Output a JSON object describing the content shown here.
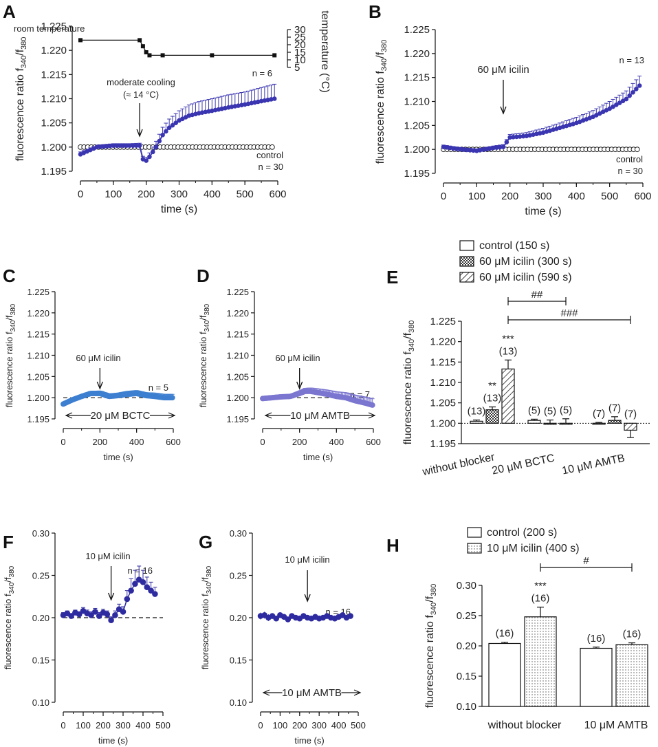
{
  "colors": {
    "dark_blue": "#3a35b0",
    "dark_blue_fill": "#3732a8",
    "mid_blue": "#3d7fd0",
    "lilac": "#7b76d0",
    "navy": "#2e2aa0",
    "black": "#111111",
    "open": "#ffffff"
  },
  "chart_data": [
    {
      "panel": "A",
      "type": "line",
      "xlabel": "time (s)",
      "ylabel_main": "fluorescence ratio f",
      "ylabel_sub1": "340",
      "ylabel_sep": "/f",
      "ylabel_sub2": "380",
      "xlim": [
        0,
        600
      ],
      "ylim": [
        1.195,
        1.225
      ],
      "xticks": [
        0,
        100,
        200,
        300,
        400,
        500,
        600
      ],
      "yticks": [
        1.195,
        1.2,
        1.205,
        1.21,
        1.215,
        1.22,
        1.225
      ],
      "ytick_labels": [
        "1.195",
        "1.200",
        "1.205",
        "1.210",
        "1.215",
        "1.220",
        "1.225"
      ],
      "right_axis": {
        "label": "temperature (°C)",
        "ylim": [
          5,
          30
        ],
        "ticks": [
          "5",
          "10",
          "15",
          "20",
          "25",
          "30"
        ],
        "tick_values": [
          5,
          10,
          15,
          20,
          25,
          30
        ],
        "temperature_series": {
          "x": [
            0,
            180,
            190,
            200,
            210,
            250,
            400,
            590
          ],
          "y": [
            23,
            23,
            19,
            15,
            13,
            13,
            13,
            13
          ]
        }
      },
      "annotations": {
        "room": "room temperature",
        "cool1": "moderate cooling",
        "cool2": "(≈ 14 °C)",
        "n_stim": "n = 6",
        "ctrl": "control",
        "n_ctrl": "n = 30"
      },
      "series": [
        {
          "name": "moderate cooling",
          "x": [
            0,
            50,
            100,
            150,
            180,
            190,
            200,
            210,
            230,
            250,
            270,
            300,
            330,
            360,
            400,
            450,
            500,
            550,
            590
          ],
          "y": [
            1.1985,
            1.2,
            1.2003,
            1.2003,
            1.2003,
            1.1975,
            1.1972,
            1.198,
            1.2,
            1.2025,
            1.204,
            1.2055,
            1.2065,
            1.207,
            1.2075,
            1.2082,
            1.2088,
            1.2095,
            1.21
          ],
          "err": [
            0.0005,
            0.0004,
            0.0004,
            0.0004,
            0.0005,
            0.0006,
            0.0007,
            0.0008,
            0.0012,
            0.0016,
            0.0018,
            0.002,
            0.0022,
            0.0024,
            0.0025,
            0.0026,
            0.0026,
            0.0028,
            0.003
          ]
        },
        {
          "name": "control",
          "x": [
            0,
            600
          ],
          "y": [
            1.2,
            1.2
          ]
        }
      ]
    },
    {
      "panel": "B",
      "type": "line",
      "xlabel": "time (s)",
      "ylabel_main": "fluorescence ratio f",
      "ylabel_sub1": "340",
      "ylabel_sep": "/f",
      "ylabel_sub2": "380",
      "xlim": [
        0,
        600
      ],
      "ylim": [
        1.195,
        1.225
      ],
      "xticks": [
        0,
        100,
        200,
        300,
        400,
        500,
        600
      ],
      "yticks": [
        1.195,
        1.2,
        1.205,
        1.21,
        1.215,
        1.22,
        1.225
      ],
      "ytick_labels": [
        "1.195",
        "1.200",
        "1.205",
        "1.210",
        "1.215",
        "1.220",
        "1.225"
      ],
      "annotations": {
        "stim": "60 μM icilin",
        "n_stim": "n = 13",
        "ctrl": "control",
        "n_ctrl": "n = 30"
      },
      "series": [
        {
          "name": "60 μM icilin",
          "x": [
            0,
            50,
            100,
            150,
            180,
            200,
            250,
            300,
            350,
            400,
            450,
            500,
            550,
            590
          ],
          "y": [
            1.2005,
            1.2,
            1.1997,
            1.2003,
            1.2005,
            1.2025,
            1.2028,
            1.2035,
            1.2045,
            1.2055,
            1.2068,
            1.2085,
            1.2105,
            1.2133
          ],
          "err": [
            0.0004,
            0.0004,
            0.0004,
            0.0004,
            0.0005,
            0.0006,
            0.0007,
            0.0009,
            0.001,
            0.0012,
            0.0013,
            0.0015,
            0.0017,
            0.002
          ]
        },
        {
          "name": "control",
          "x": [
            0,
            600
          ],
          "y": [
            1.2,
            1.2
          ]
        }
      ]
    },
    {
      "panel": "C",
      "type": "line",
      "xlabel": "time (s)",
      "ylabel_main": "fluorescence ratio f",
      "ylabel_sub1": "340",
      "ylabel_sep": "/f",
      "ylabel_sub2": "380",
      "xlim": [
        0,
        600
      ],
      "ylim": [
        1.195,
        1.225
      ],
      "xticks": [
        0,
        200,
        400,
        600
      ],
      "yticks": [
        1.195,
        1.2,
        1.205,
        1.21,
        1.215,
        1.22,
        1.225
      ],
      "ytick_labels": [
        "1.195",
        "1.200",
        "1.205",
        "1.210",
        "1.215",
        "1.220",
        "1.225"
      ],
      "annotations": {
        "stim": "60 μM icilin",
        "n_stim": "n = 5",
        "blocker": "20 μM BCTC"
      },
      "series": [
        {
          "name": "60 μM icilin + 20 μM BCTC",
          "x": [
            0,
            50,
            100,
            150,
            200,
            250,
            300,
            350,
            400,
            450,
            500,
            550,
            600
          ],
          "y": [
            1.1985,
            1.1995,
            1.2003,
            1.201,
            1.201,
            1.2003,
            1.2005,
            1.2008,
            1.201,
            1.2005,
            1.2003,
            1.2,
            1.2
          ],
          "err": [
            0.0004,
            0.0004,
            0.0004,
            0.0005,
            0.0006,
            0.0006,
            0.0006,
            0.0007,
            0.0007,
            0.0007,
            0.0008,
            0.0008,
            0.0008
          ]
        }
      ]
    },
    {
      "panel": "D",
      "type": "line",
      "xlabel": "time (s)",
      "ylabel_main": "fluorescence ratio f",
      "ylabel_sub1": "340",
      "ylabel_sep": "/f",
      "ylabel_sub2": "380",
      "xlim": [
        0,
        600
      ],
      "ylim": [
        1.195,
        1.225
      ],
      "xticks": [
        0,
        200,
        400,
        600
      ],
      "yticks": [
        1.195,
        1.2,
        1.205,
        1.21,
        1.215,
        1.22,
        1.225
      ],
      "ytick_labels": [
        "1.195",
        "1.200",
        "1.205",
        "1.210",
        "1.215",
        "1.220",
        "1.225"
      ],
      "annotations": {
        "stim": "60 μM icilin",
        "n_stim": "n = 7",
        "blocker": "10 μM AMTB"
      },
      "series": [
        {
          "name": "60 μM icilin + 10 μM AMTB",
          "x": [
            0,
            50,
            100,
            150,
            200,
            230,
            260,
            300,
            350,
            400,
            450,
            500,
            550,
            600
          ],
          "y": [
            1.1998,
            1.2,
            1.2002,
            1.2003,
            1.201,
            1.2015,
            1.2015,
            1.2012,
            1.2008,
            1.2003,
            1.2,
            1.1993,
            1.1988,
            1.1982
          ],
          "err": [
            0.0004,
            0.0004,
            0.0004,
            0.0004,
            0.0006,
            0.0007,
            0.0008,
            0.0009,
            0.001,
            0.0011,
            0.0012,
            0.0013,
            0.0014,
            0.0015
          ]
        }
      ]
    },
    {
      "panel": "E",
      "type": "bar",
      "ylabel_main": "fluorescence ratio f",
      "ylabel_sub1": "340",
      "ylabel_sep": "/f",
      "ylabel_sub2": "380",
      "ylim": [
        1.195,
        1.225
      ],
      "yticks": [
        1.195,
        1.2,
        1.205,
        1.21,
        1.215,
        1.22,
        1.225
      ],
      "ytick_labels": [
        "1.195",
        "1.200",
        "1.205",
        "1.210",
        "1.215",
        "1.220",
        "1.225"
      ],
      "baseline": 1.2,
      "categories": [
        "without blocker",
        "20 μM BCTC",
        "10 μM AMTB"
      ],
      "legend": [
        "control (150 s)",
        "60 μM icilin (300 s)",
        "60 μM icilin (590 s)"
      ],
      "series": [
        {
          "name": "control (150 s)",
          "values": [
            1.2005,
            1.2007,
            1.2
          ],
          "err": [
            0.0003,
            0.0003,
            0.0002
          ],
          "n_labels": [
            "(13)",
            "(5)",
            "(7)"
          ],
          "sig": [
            "",
            "",
            ""
          ]
        },
        {
          "name": "60 μM icilin (300 s)",
          "values": [
            1.2033,
            1.2,
            1.2007
          ],
          "err": [
            0.0007,
            0.0008,
            0.0009
          ],
          "n_labels": [
            "(13)",
            "(5)",
            "(7)"
          ],
          "sig": [
            "**",
            "",
            ""
          ]
        },
        {
          "name": "60 μM icilin (590 s)",
          "values": [
            1.2133,
            1.2,
            1.1983
          ],
          "err": [
            0.0022,
            0.0011,
            0.0018
          ],
          "n_labels": [
            "(13)",
            "(5)",
            "(7)"
          ],
          "sig": [
            "***",
            "",
            ""
          ]
        }
      ],
      "brackets": [
        {
          "label": "##",
          "from": "without blocker",
          "to": "20 μM BCTC"
        },
        {
          "label": "###",
          "from": "without blocker",
          "to": "10 μM AMTB"
        }
      ]
    },
    {
      "panel": "F",
      "type": "line",
      "xlabel": "time (s)",
      "ylabel_main": "fluorescence ratio f",
      "ylabel_sub1": "340",
      "ylabel_sep": "/f",
      "ylabel_sub2": "380",
      "xlim": [
        0,
        500
      ],
      "ylim": [
        0.1,
        0.3
      ],
      "xticks": [
        0,
        100,
        200,
        300,
        400,
        500
      ],
      "yticks": [
        0.1,
        0.15,
        0.2,
        0.25,
        0.3
      ],
      "ytick_labels": [
        "0.10",
        "0.15",
        "0.20",
        "0.25",
        "0.30"
      ],
      "annotations": {
        "stim": "10 μM icilin",
        "n_stim": "n = 16"
      },
      "series": [
        {
          "name": "10 μM icilin",
          "x": [
            0,
            20,
            40,
            60,
            80,
            100,
            120,
            140,
            160,
            180,
            200,
            220,
            240,
            260,
            280,
            300,
            320,
            340,
            360,
            380,
            400,
            420,
            440,
            460
          ],
          "y": [
            0.203,
            0.205,
            0.202,
            0.206,
            0.204,
            0.208,
            0.205,
            0.203,
            0.207,
            0.202,
            0.206,
            0.204,
            0.197,
            0.203,
            0.21,
            0.207,
            0.222,
            0.232,
            0.24,
            0.245,
            0.242,
            0.236,
            0.232,
            0.228
          ],
          "err": [
            0.003,
            0.003,
            0.003,
            0.003,
            0.003,
            0.004,
            0.004,
            0.004,
            0.004,
            0.004,
            0.004,
            0.004,
            0.004,
            0.005,
            0.006,
            0.006,
            0.01,
            0.014,
            0.016,
            0.016,
            0.014,
            0.012,
            0.01,
            0.008
          ]
        }
      ]
    },
    {
      "panel": "G",
      "type": "line",
      "xlabel": "time (s)",
      "ylabel_main": "fluorescence ratio f",
      "ylabel_sub1": "340",
      "ylabel_sep": "/f",
      "ylabel_sub2": "380",
      "xlim": [
        0,
        500
      ],
      "ylim": [
        0.1,
        0.3
      ],
      "xticks": [
        0,
        100,
        200,
        300,
        400,
        500
      ],
      "yticks": [
        0.1,
        0.15,
        0.2,
        0.25,
        0.3
      ],
      "ytick_labels": [
        "0.10",
        "0.15",
        "0.20",
        "0.25",
        "0.30"
      ],
      "annotations": {
        "stim": "10 μM icilin",
        "n_stim": "n = 16",
        "blocker": "10 μM AMTB"
      },
      "series": [
        {
          "name": "10 μM icilin + 10 μM AMTB",
          "x": [
            0,
            20,
            40,
            60,
            80,
            100,
            120,
            140,
            160,
            180,
            200,
            220,
            240,
            260,
            280,
            300,
            320,
            340,
            360,
            380,
            400,
            420,
            440,
            460
          ],
          "y": [
            0.202,
            0.203,
            0.2,
            0.202,
            0.199,
            0.203,
            0.201,
            0.198,
            0.202,
            0.2,
            0.199,
            0.202,
            0.2,
            0.199,
            0.201,
            0.199,
            0.2,
            0.202,
            0.2,
            0.199,
            0.201,
            0.203,
            0.2,
            0.202
          ],
          "err": [
            0.004,
            0.004,
            0.004,
            0.003,
            0.003,
            0.003,
            0.003,
            0.003,
            0.003,
            0.003,
            0.003,
            0.003,
            0.003,
            0.003,
            0.003,
            0.003,
            0.003,
            0.003,
            0.003,
            0.003,
            0.003,
            0.003,
            0.003,
            0.003
          ]
        }
      ]
    },
    {
      "panel": "H",
      "type": "bar",
      "ylabel_main": "fluorescence ratio f",
      "ylabel_sub1": "340",
      "ylabel_sep": "/f",
      "ylabel_sub2": "380",
      "ylim": [
        0.1,
        0.3
      ],
      "yticks": [
        0.1,
        0.15,
        0.2,
        0.25,
        0.3
      ],
      "ytick_labels": [
        "0.10",
        "0.15",
        "0.20",
        "0.25",
        "0.30"
      ],
      "baseline": 0.1,
      "categories": [
        "without blocker",
        "10 μM AMTB"
      ],
      "legend": [
        "control (200 s)",
        "10 μM icilin (400 s)"
      ],
      "series": [
        {
          "name": "control (200 s)",
          "values": [
            0.204,
            0.196
          ],
          "err": [
            0.002,
            0.002
          ],
          "n_labels": [
            "(16)",
            "(16)"
          ],
          "sig": [
            "",
            ""
          ]
        },
        {
          "name": "10 μM icilin (400 s)",
          "values": [
            0.248,
            0.202
          ],
          "err": [
            0.016,
            0.003
          ],
          "n_labels": [
            "(16)",
            "(16)"
          ],
          "sig": [
            "***",
            ""
          ]
        }
      ],
      "brackets": [
        {
          "label": "#",
          "from": "without blocker",
          "to": "10 μM AMTB"
        }
      ]
    }
  ]
}
